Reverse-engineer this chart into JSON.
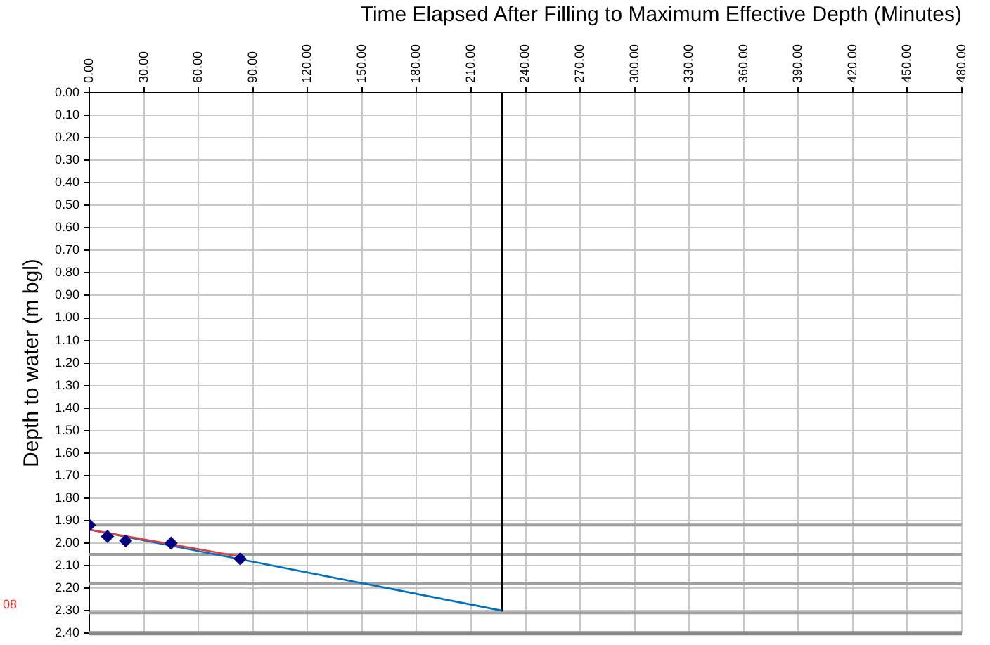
{
  "chart_data": {
    "type": "scatter",
    "xlabel": "Time Elapsed After Filling to Maximum Effective Depth (Minutes)",
    "ylabel": "Depth to water (m bgl)",
    "xlim": [
      0,
      480
    ],
    "ylim": [
      2.4,
      0
    ],
    "xticks": [
      {
        "value": 0,
        "label": "0.00"
      },
      {
        "value": 30,
        "label": "30.00"
      },
      {
        "value": 60,
        "label": "60.00"
      },
      {
        "value": 90,
        "label": "90.00"
      },
      {
        "value": 120,
        "label": "120.00"
      },
      {
        "value": 150,
        "label": "150.00"
      },
      {
        "value": 180,
        "label": "180.00"
      },
      {
        "value": 210,
        "label": "210.00"
      },
      {
        "value": 240,
        "label": "240.00"
      },
      {
        "value": 270,
        "label": "270.00"
      },
      {
        "value": 300,
        "label": "300.00"
      },
      {
        "value": 330,
        "label": "330.00"
      },
      {
        "value": 360,
        "label": "360.00"
      },
      {
        "value": 390,
        "label": "390.00"
      },
      {
        "value": 420,
        "label": "420.00"
      },
      {
        "value": 450,
        "label": "450.00"
      },
      {
        "value": 480,
        "label": "480.00"
      }
    ],
    "yticks": [
      {
        "value": 0,
        "label": "0.00"
      },
      {
        "value": 0.1,
        "label": "0.10"
      },
      {
        "value": 0.2,
        "label": "0.20"
      },
      {
        "value": 0.3,
        "label": "0.30"
      },
      {
        "value": 0.4,
        "label": "0.40"
      },
      {
        "value": 0.5,
        "label": "0.50"
      },
      {
        "value": 0.6,
        "label": "0.60"
      },
      {
        "value": 0.7,
        "label": "0.70"
      },
      {
        "value": 0.8,
        "label": "0.80"
      },
      {
        "value": 0.9,
        "label": "0.90"
      },
      {
        "value": 1,
        "label": "1.00"
      },
      {
        "value": 1.1,
        "label": "1.10"
      },
      {
        "value": 1.2,
        "label": "1.20"
      },
      {
        "value": 1.3,
        "label": "1.30"
      },
      {
        "value": 1.4,
        "label": "1.40"
      },
      {
        "value": 1.5,
        "label": "1.50"
      },
      {
        "value": 1.6,
        "label": "1.60"
      },
      {
        "value": 1.7,
        "label": "1.70"
      },
      {
        "value": 1.8,
        "label": "1.80"
      },
      {
        "value": 1.9,
        "label": "1.90"
      },
      {
        "value": 2,
        "label": "2.00"
      },
      {
        "value": 2.1,
        "label": "2.10"
      },
      {
        "value": 2.2,
        "label": "2.20"
      },
      {
        "value": 2.3,
        "label": "2.30"
      },
      {
        "value": 2.4,
        "label": "2.40"
      }
    ],
    "grid": true,
    "legend": false,
    "series": [
      {
        "type": "scatter",
        "marker": "diamond",
        "color": "#000080",
        "x": [
          0,
          10,
          20,
          45,
          83
        ],
        "values": [
          1.92,
          1.97,
          1.99,
          2.0,
          2.07
        ]
      },
      {
        "type": "line",
        "marker": "none",
        "color": "#e03c3c",
        "x": [
          0,
          83
        ],
        "values": [
          1.94,
          2.06
        ]
      },
      {
        "type": "line",
        "marker": "none",
        "color": "#0070c0",
        "x": [
          0,
          227
        ],
        "values": [
          1.94,
          2.3
        ]
      },
      {
        "type": "line",
        "marker": "none",
        "color": "#000000",
        "x": [
          227,
          227
        ],
        "values": [
          0,
          2.3
        ]
      }
    ],
    "ref_lines": [
      {
        "axis": "y",
        "value": 1.92,
        "color": "#a0a0a0"
      },
      {
        "axis": "y",
        "value": 2.05,
        "color": "#a0a0a0"
      },
      {
        "axis": "y",
        "value": 2.18,
        "color": "#a0a0a0"
      },
      {
        "axis": "y",
        "value": 2.31,
        "color": "#a0a0a0"
      }
    ],
    "annotations": [
      "08"
    ]
  }
}
